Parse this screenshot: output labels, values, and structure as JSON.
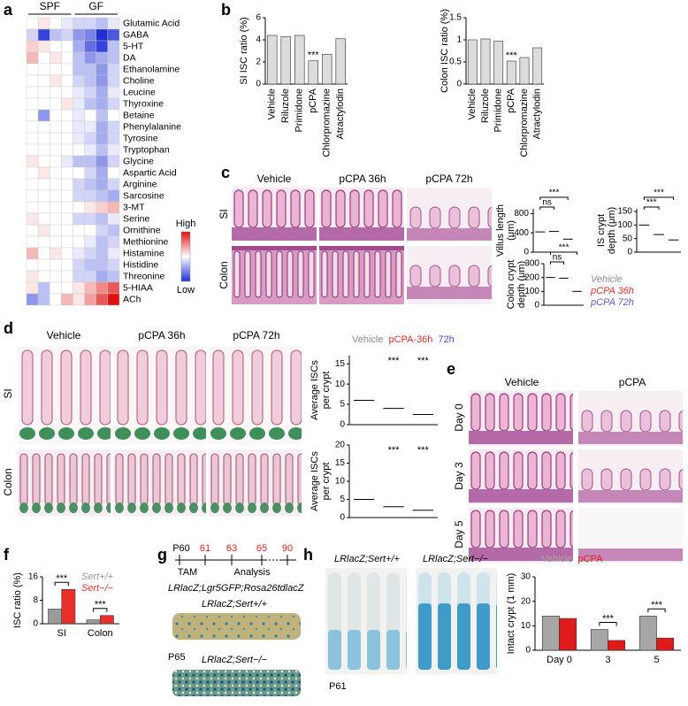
{
  "figure": {
    "panel_labels": [
      "a",
      "b",
      "c",
      "d",
      "e",
      "f",
      "g",
      "h"
    ],
    "c": {
      "columns": [
        "Vehicle",
        "pCPA 36h",
        "pCPA 72h"
      ],
      "rows": [
        "SI",
        "Colon"
      ]
    },
    "d": {
      "columns": [
        "Vehicle",
        "pCPA 36h",
        "pCPA 72h"
      ],
      "rows": [
        "SI",
        "Colon"
      ]
    },
    "e": {
      "columns": [
        "Vehicle",
        "pCPA"
      ],
      "rows": [
        "Day 0",
        "Day 3",
        "Day 5"
      ]
    },
    "g": {
      "timeline": [
        "P60",
        "61",
        "63",
        "65",
        "90"
      ],
      "events": [
        "TAM",
        "Analysis"
      ],
      "genotype": "LRlacZ;Lgr5GFP;Rosa26tdlacZ",
      "images": [
        "LRlacZ;Sert+/+",
        "LRlacZ;Sert−/−"
      ],
      "age": "P65"
    },
    "h": {
      "images": [
        "LRlacZ;Sert+/+",
        "LRlacZ;Sert−/−"
      ],
      "age": "P61"
    }
  },
  "chart_data": [
    {
      "type": "heatmap",
      "column_groups": [
        "SPF",
        "GF"
      ],
      "colorbar": [
        "High",
        "Low"
      ],
      "zlim": [
        -1,
        1
      ],
      "colors": [
        "#1f2fd6",
        "#ffffff",
        "#e01010"
      ],
      "rows": [
        "Glutamic Acid",
        "GABA",
        "5-HT",
        "DA",
        "Ethanolamine",
        "Choline",
        "Leucine",
        "Thyroxine",
        "Betaine",
        "Phenylalanine",
        "Tyrosine",
        "Tryptophan",
        "Glycine",
        "Aspartic Acid",
        "Arginine",
        "Sarcosine",
        "3-MT",
        "Serine",
        "Ornithine",
        "Methionine",
        "Histamine",
        "Histidine",
        "Threonine",
        "5-HIAA",
        "ACh"
      ],
      "values": [
        [
          0,
          0.1,
          0,
          -0.1,
          -0.2,
          -0.2,
          -0.3,
          -0.1
        ],
        [
          -0.2,
          -0.9,
          -0.3,
          -0.2,
          -0.5,
          -0.6,
          -1,
          -0.8
        ],
        [
          0.2,
          0.1,
          0,
          0,
          -0.4,
          -0.7,
          -0.9,
          -0.3
        ],
        [
          0.3,
          0,
          0.1,
          0,
          -0.3,
          -0.5,
          -0.4,
          -0.3
        ],
        [
          0,
          0,
          0,
          0,
          -0.3,
          -0.3,
          -0.5,
          -0.2
        ],
        [
          0,
          0,
          0.1,
          0,
          -0.2,
          -0.3,
          -0.5,
          -0.2
        ],
        [
          0,
          0,
          0,
          0,
          -0.1,
          -0.2,
          -0.4,
          -0.1
        ],
        [
          0,
          0,
          0,
          0.1,
          -0.1,
          -0.3,
          -0.4,
          -0.2
        ],
        [
          0,
          -0.5,
          0,
          0,
          -0.1,
          0,
          -0.3,
          0
        ],
        [
          0,
          0,
          0,
          0,
          -0.1,
          -0.1,
          -0.4,
          -0.2
        ],
        [
          0,
          0,
          0,
          0,
          -0.1,
          -0.2,
          -0.4,
          -0.2
        ],
        [
          0,
          0,
          0,
          0,
          0,
          -0.1,
          -0.3,
          -0.1
        ],
        [
          0.1,
          0,
          0,
          -0.1,
          -0.3,
          -0.3,
          -0.5,
          -0.2
        ],
        [
          0,
          0.1,
          0,
          0,
          0,
          -0.2,
          -0.4,
          0
        ],
        [
          0,
          0,
          0,
          0,
          -0.2,
          -0.3,
          -0.4,
          -0.2
        ],
        [
          0,
          0,
          0,
          0,
          -0.2,
          -0.2,
          -0.3,
          -0.4
        ],
        [
          0,
          0,
          0,
          0,
          0,
          0.1,
          0.2,
          0.3
        ],
        [
          0.1,
          0,
          0,
          0,
          -0.2,
          -0.2,
          -0.3,
          -0.1
        ],
        [
          0,
          0.1,
          0,
          0,
          0,
          0,
          -0.2,
          -0.3
        ],
        [
          0,
          0,
          0,
          0,
          0,
          -0.1,
          -0.3,
          -0.2
        ],
        [
          0.3,
          0,
          0.1,
          0,
          -0.1,
          -0.2,
          -0.3,
          -0.1
        ],
        [
          0,
          0,
          0,
          0,
          -0.2,
          -0.3,
          -0.3,
          -0.2
        ],
        [
          0.1,
          0,
          0,
          0,
          -0.2,
          -0.2,
          -0.4,
          -0.3
        ],
        [
          0.1,
          -0.3,
          0,
          0,
          0.1,
          0.3,
          0.5,
          0.7
        ],
        [
          -0.5,
          -0.3,
          0,
          0.3,
          0.1,
          0.4,
          0.7,
          1
        ]
      ]
    },
    {
      "type": "bar",
      "ylabel": "SI ISC ratio (%)",
      "categories": [
        "Vehicle",
        "Riluzole",
        "Primidone",
        "pCPA",
        "Chlorpromazine",
        "Atractylodin"
      ],
      "values": [
        4.4,
        4.3,
        4.4,
        2.1,
        2.7,
        4.1
      ],
      "color": "#dcdcdc",
      "ylim": [
        0,
        6
      ],
      "yticks": [
        0,
        2,
        4,
        6
      ],
      "annotations": [
        {
          "text": "***",
          "category": 3
        }
      ]
    },
    {
      "type": "bar",
      "ylabel": "Colon ISC ratio (%)",
      "categories": [
        "Vehicle",
        "Riluzole",
        "Primidone",
        "pCPA",
        "Chlorpromazine",
        "Atractylodin"
      ],
      "values": [
        1.0,
        1.02,
        0.97,
        0.52,
        0.6,
        0.82
      ],
      "color": "#dcdcdc",
      "ylim": [
        0,
        1.5
      ],
      "yticks": [
        0,
        0.5,
        1,
        1.5
      ],
      "annotations": [
        {
          "text": "***",
          "category": 3
        }
      ]
    },
    {
      "type": "dotplot",
      "ylabel": [
        "Villus length",
        "(μm)"
      ],
      "ylim": [
        0,
        900
      ],
      "yticks": [
        0,
        400,
        800
      ],
      "series": [
        {
          "color": "#8c8c8c",
          "values": [
            420
          ]
        },
        {
          "color": "#e8302a",
          "values": [
            430
          ]
        },
        {
          "color": "#5a5ae0",
          "values": [
            270
          ]
        }
      ],
      "annotations": [
        "ns",
        "***"
      ]
    },
    {
      "type": "dotplot",
      "ylabel": [
        "IS crypt",
        "depth (μm)"
      ],
      "ylim": [
        0,
        160
      ],
      "yticks": [
        0,
        50,
        100,
        150
      ],
      "series": [
        {
          "color": "#8c8c8c",
          "values": [
            100
          ]
        },
        {
          "color": "#e8302a",
          "values": [
            65
          ]
        },
        {
          "color": "#5a5ae0",
          "values": [
            45
          ]
        }
      ],
      "annotations": [
        "***",
        "***"
      ]
    },
    {
      "type": "dotplot",
      "ylabel": [
        "Colon crypt",
        "depth (μm)"
      ],
      "ylim": [
        0,
        300
      ],
      "yticks": [
        0,
        100,
        200,
        300
      ],
      "series": [
        {
          "name": "Vehicle",
          "color": "#8c8c8c",
          "values": [
            200
          ]
        },
        {
          "name": "pCPA 36h",
          "color": "#e8302a",
          "values": [
            195
          ]
        },
        {
          "name": "pCPA 72h",
          "color": "#5a5ae0",
          "values": [
            100
          ]
        }
      ],
      "annotations": [
        "ns",
        "***"
      ]
    },
    {
      "type": "dotplot",
      "ylabel": [
        "Average ISCs",
        "per crypt"
      ],
      "ylim": [
        0,
        17
      ],
      "yticks": [
        0,
        5,
        10,
        15
      ],
      "series": [
        {
          "name": "Vehicle",
          "color": "#8c8c8c",
          "values": [
            6
          ]
        },
        {
          "name": "pCPA-36h",
          "color": "#e8302a",
          "values": [
            4
          ]
        },
        {
          "name": "72h",
          "color": "#4a4ad8",
          "values": [
            2.5
          ]
        }
      ],
      "annotations": [
        {
          "text": "***",
          "category": 1
        },
        {
          "text": "***",
          "category": 2
        }
      ]
    },
    {
      "type": "dotplot",
      "ylabel": [
        "Average ISCs",
        "per crypt"
      ],
      "ylim": [
        0,
        20
      ],
      "yticks": [
        0,
        5,
        10,
        15,
        20
      ],
      "series": [
        {
          "color": "#8c8c8c",
          "values": [
            5
          ]
        },
        {
          "color": "#e8302a",
          "values": [
            3
          ]
        },
        {
          "color": "#4a4ad8",
          "values": [
            2
          ]
        }
      ],
      "annotations": [
        {
          "text": "***",
          "category": 1
        },
        {
          "text": "***",
          "category": 2
        }
      ]
    },
    {
      "type": "bar",
      "ylabel": "ISC ratio (%)",
      "categories": [
        "SI",
        "Colon"
      ],
      "series": [
        {
          "name": "Sert+/+",
          "color": "#9a9a9a",
          "values": [
            5,
            1.3
          ]
        },
        {
          "name": "Sert−/−",
          "color": "#e8302a",
          "values": [
            11.7,
            2.8
          ]
        }
      ],
      "ylim": [
        0,
        16
      ],
      "yticks": [
        0,
        8,
        16
      ],
      "annotations": [
        {
          "text": "***",
          "category": 0
        },
        {
          "text": "***",
          "category": 1
        }
      ]
    },
    {
      "type": "bar",
      "ylabel": "Intact crypt (1 mm)",
      "categories": [
        "Day 0",
        "3",
        "5"
      ],
      "series": [
        {
          "name": "Vehicle",
          "color": "#a6a6a6",
          "values": [
            14,
            8.5,
            14
          ]
        },
        {
          "name": "pCPA",
          "color": "#e01b1b",
          "values": [
            13,
            4,
            5
          ]
        }
      ],
      "ylim": [
        0,
        30
      ],
      "yticks": [
        0,
        10,
        20,
        30
      ],
      "annotations": [
        {
          "text": "***",
          "category": 1
        },
        {
          "text": "***",
          "category": 2
        }
      ]
    }
  ]
}
